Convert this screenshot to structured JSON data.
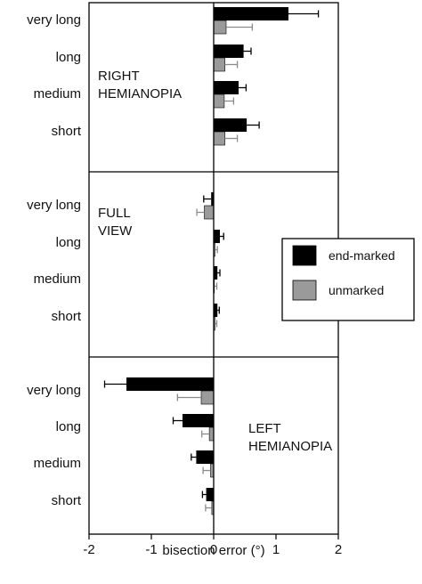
{
  "chart_data": {
    "type": "bar",
    "orientation": "horizontal",
    "xlabel": "bisection error (°)",
    "xlim": [
      -2,
      2
    ],
    "xticks": [
      "-2",
      "-1",
      "0",
      "1",
      "2"
    ],
    "xtick_values": [
      -2,
      -1,
      0,
      1,
      2
    ],
    "categories": [
      "very long",
      "long",
      "medium",
      "short"
    ],
    "legend": {
      "placement": "right, middle panel",
      "entries": [
        {
          "label": "end-marked",
          "color": "#000000"
        },
        {
          "label": "unmarked",
          "color": "#9a9a9a"
        }
      ]
    },
    "panels": [
      {
        "label_lines": [
          "RIGHT",
          "HEMIANOPIA"
        ],
        "series": [
          {
            "name": "end-marked",
            "values": [
              1.2,
              0.48,
              0.4,
              0.53
            ],
            "errors": [
              0.48,
              0.12,
              0.12,
              0.2
            ]
          },
          {
            "name": "unmarked",
            "values": [
              0.2,
              0.18,
              0.17,
              0.18
            ],
            "errors": [
              0.42,
              0.2,
              0.15,
              0.2
            ]
          }
        ]
      },
      {
        "label_lines": [
          "FULL",
          "VIEW"
        ],
        "series": [
          {
            "name": "end-marked",
            "values": [
              -0.04,
              0.1,
              0.06,
              0.06
            ],
            "errors": [
              0.12,
              0.06,
              0.04,
              0.03
            ]
          },
          {
            "name": "unmarked",
            "values": [
              -0.15,
              0.02,
              0.01,
              0.02
            ],
            "errors": [
              0.12,
              0.04,
              0.04,
              0.03
            ]
          }
        ]
      },
      {
        "label_lines": [
          "LEFT",
          "HEMIANOPIA"
        ],
        "series": [
          {
            "name": "end-marked",
            "values": [
              -1.4,
              -0.5,
              -0.28,
              -0.12
            ],
            "errors": [
              0.35,
              0.15,
              0.08,
              0.06
            ]
          },
          {
            "name": "unmarked",
            "values": [
              -0.2,
              -0.07,
              -0.05,
              -0.03
            ],
            "errors": [
              0.38,
              0.12,
              0.12,
              0.1
            ]
          }
        ]
      }
    ]
  }
}
